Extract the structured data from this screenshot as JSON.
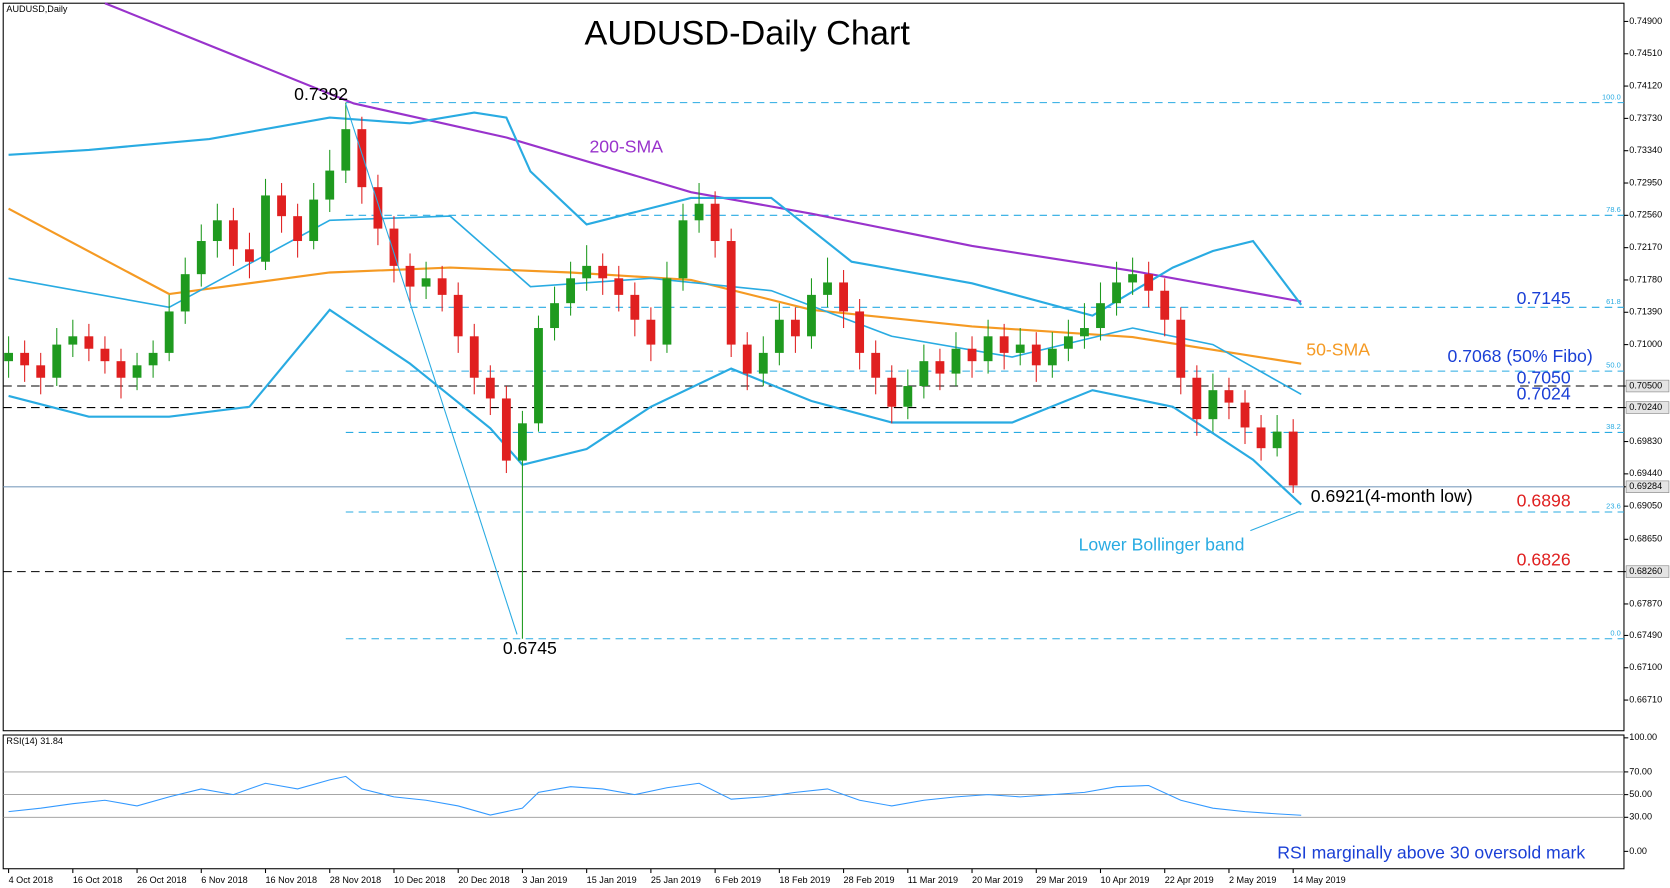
{
  "chart_data": {
    "type": "candlestick",
    "title": "AUDUSD-Daily Chart",
    "symbol_label": "AUDUSD,Daily",
    "up_color": "#1f9a1f",
    "down_color": "#e02020",
    "x": [
      0,
      2,
      4,
      6,
      8,
      10,
      12,
      14,
      16,
      18,
      20,
      22,
      24,
      26,
      28,
      30,
      32,
      34,
      36,
      38,
      40,
      42,
      44,
      46,
      48,
      50,
      52,
      54,
      56,
      58,
      60,
      62,
      64,
      66,
      68,
      70,
      72,
      74,
      76,
      78,
      80,
      82,
      84,
      86,
      88,
      90,
      92,
      94,
      96,
      98,
      100,
      102,
      104,
      106,
      108,
      110,
      112,
      114,
      116,
      118,
      120,
      122,
      124,
      126,
      128,
      130,
      132,
      134,
      136,
      138,
      140,
      142,
      144,
      146,
      148,
      150,
      152,
      154,
      156,
      158,
      160
    ],
    "ohlc": [
      [
        0.708,
        0.711,
        0.706,
        0.709
      ],
      [
        0.709,
        0.7105,
        0.7055,
        0.7075
      ],
      [
        0.7075,
        0.709,
        0.704,
        0.706
      ],
      [
        0.706,
        0.712,
        0.705,
        0.71
      ],
      [
        0.71,
        0.713,
        0.7085,
        0.711
      ],
      [
        0.711,
        0.7125,
        0.708,
        0.7095
      ],
      [
        0.7095,
        0.711,
        0.7065,
        0.708
      ],
      [
        0.708,
        0.7095,
        0.7035,
        0.706
      ],
      [
        0.706,
        0.709,
        0.7045,
        0.7075
      ],
      [
        0.7075,
        0.7105,
        0.706,
        0.709
      ],
      [
        0.709,
        0.716,
        0.708,
        0.714
      ],
      [
        0.714,
        0.7205,
        0.7125,
        0.7185
      ],
      [
        0.7185,
        0.7245,
        0.717,
        0.7225
      ],
      [
        0.7225,
        0.727,
        0.7205,
        0.725
      ],
      [
        0.725,
        0.7265,
        0.7195,
        0.7215
      ],
      [
        0.7215,
        0.7235,
        0.718,
        0.72
      ],
      [
        0.72,
        0.73,
        0.719,
        0.728
      ],
      [
        0.728,
        0.7295,
        0.7235,
        0.7255
      ],
      [
        0.7255,
        0.727,
        0.7205,
        0.7225
      ],
      [
        0.7225,
        0.7295,
        0.7215,
        0.7275
      ],
      [
        0.7275,
        0.7335,
        0.726,
        0.731
      ],
      [
        0.731,
        0.7392,
        0.7295,
        0.736
      ],
      [
        0.736,
        0.7375,
        0.727,
        0.729
      ],
      [
        0.729,
        0.7305,
        0.722,
        0.724
      ],
      [
        0.724,
        0.7255,
        0.7175,
        0.7195
      ],
      [
        0.7195,
        0.721,
        0.715,
        0.717
      ],
      [
        0.717,
        0.72,
        0.7155,
        0.718
      ],
      [
        0.718,
        0.7195,
        0.714,
        0.716
      ],
      [
        0.716,
        0.7175,
        0.709,
        0.711
      ],
      [
        0.711,
        0.7125,
        0.704,
        0.706
      ],
      [
        0.706,
        0.7075,
        0.7015,
        0.7035
      ],
      [
        0.7035,
        0.705,
        0.6945,
        0.696
      ],
      [
        0.696,
        0.702,
        0.6745,
        0.7005
      ],
      [
        0.7005,
        0.7135,
        0.6995,
        0.712
      ],
      [
        0.712,
        0.717,
        0.7105,
        0.715
      ],
      [
        0.715,
        0.72,
        0.7135,
        0.718
      ],
      [
        0.718,
        0.722,
        0.7165,
        0.7195
      ],
      [
        0.7195,
        0.721,
        0.716,
        0.718
      ],
      [
        0.718,
        0.7195,
        0.714,
        0.716
      ],
      [
        0.716,
        0.7175,
        0.711,
        0.713
      ],
      [
        0.713,
        0.7145,
        0.708,
        0.71
      ],
      [
        0.71,
        0.72,
        0.709,
        0.718
      ],
      [
        0.718,
        0.727,
        0.7165,
        0.725
      ],
      [
        0.725,
        0.7295,
        0.7235,
        0.727
      ],
      [
        0.727,
        0.7285,
        0.7205,
        0.7225
      ],
      [
        0.7225,
        0.724,
        0.7085,
        0.71
      ],
      [
        0.71,
        0.7115,
        0.7045,
        0.7065
      ],
      [
        0.7065,
        0.711,
        0.705,
        0.709
      ],
      [
        0.709,
        0.715,
        0.7075,
        0.713
      ],
      [
        0.713,
        0.7145,
        0.709,
        0.711
      ],
      [
        0.711,
        0.718,
        0.7095,
        0.716
      ],
      [
        0.716,
        0.7205,
        0.7145,
        0.7175
      ],
      [
        0.7175,
        0.719,
        0.712,
        0.714
      ],
      [
        0.714,
        0.7155,
        0.707,
        0.709
      ],
      [
        0.709,
        0.7105,
        0.704,
        0.706
      ],
      [
        0.706,
        0.7075,
        0.7005,
        0.7025
      ],
      [
        0.7025,
        0.707,
        0.701,
        0.705
      ],
      [
        0.705,
        0.71,
        0.7035,
        0.708
      ],
      [
        0.708,
        0.7095,
        0.7045,
        0.7065
      ],
      [
        0.7065,
        0.7115,
        0.705,
        0.7095
      ],
      [
        0.7095,
        0.711,
        0.706,
        0.708
      ],
      [
        0.708,
        0.713,
        0.7065,
        0.711
      ],
      [
        0.711,
        0.7125,
        0.707,
        0.709
      ],
      [
        0.709,
        0.712,
        0.7075,
        0.71
      ],
      [
        0.71,
        0.7115,
        0.7055,
        0.7075
      ],
      [
        0.7075,
        0.7115,
        0.706,
        0.7095
      ],
      [
        0.7095,
        0.713,
        0.708,
        0.711
      ],
      [
        0.711,
        0.715,
        0.7095,
        0.712
      ],
      [
        0.712,
        0.7175,
        0.7105,
        0.715
      ],
      [
        0.715,
        0.72,
        0.7135,
        0.7175
      ],
      [
        0.7175,
        0.7205,
        0.716,
        0.7185
      ],
      [
        0.7185,
        0.72,
        0.7145,
        0.7165
      ],
      [
        0.7165,
        0.718,
        0.711,
        0.713
      ],
      [
        0.713,
        0.7145,
        0.704,
        0.706
      ],
      [
        0.706,
        0.7075,
        0.699,
        0.701
      ],
      [
        0.701,
        0.7065,
        0.6995,
        0.7045
      ],
      [
        0.7045,
        0.706,
        0.701,
        0.703
      ],
      [
        0.703,
        0.7045,
        0.698,
        0.7
      ],
      [
        0.7,
        0.7015,
        0.696,
        0.6975
      ],
      [
        0.6975,
        0.7015,
        0.6965,
        0.6995
      ],
      [
        0.6995,
        0.701,
        0.6921,
        0.693
      ]
    ],
    "lines": [
      {
        "name": "200-SMA",
        "color": "#9933cc",
        "width": 2,
        "x": [
          12,
          43,
          62,
          85,
          100,
          120,
          140,
          161
        ],
        "values": [
          0.7512,
          0.7391,
          0.735,
          0.7284,
          0.7258,
          0.7219,
          0.7189,
          0.7152
        ]
      },
      {
        "name": "50-SMA",
        "color": "#f59a23",
        "width": 2,
        "x": [
          0,
          20,
          40,
          55,
          70,
          85,
          100,
          120,
          140,
          161
        ],
        "values": [
          0.7264,
          0.7161,
          0.7187,
          0.7193,
          0.7187,
          0.7178,
          0.7142,
          0.7122,
          0.7109,
          0.7077
        ]
      },
      {
        "color": "#29abe2",
        "width": 2,
        "x": [
          0,
          10,
          25,
          40,
          50,
          58,
          62,
          65,
          72,
          85,
          95,
          105,
          120,
          135,
          145,
          150,
          155,
          161
        ],
        "values": [
          0.7329,
          0.7335,
          0.7348,
          0.7374,
          0.7367,
          0.738,
          0.7374,
          0.7309,
          0.7245,
          0.7277,
          0.7277,
          0.72,
          0.7174,
          0.7135,
          0.7193,
          0.7213,
          0.7225,
          0.7148
        ]
      },
      {
        "color": "#29abe2",
        "width": 2,
        "x": [
          0,
          10,
          20,
          30,
          40,
          50,
          60,
          64,
          72,
          80,
          90,
          100,
          110,
          125,
          135,
          145,
          155,
          161
        ],
        "values": [
          0.7038,
          0.7013,
          0.7013,
          0.7025,
          0.7142,
          0.7077,
          0.6999,
          0.6955,
          0.6974,
          0.7025,
          0.7071,
          0.7032,
          0.7006,
          0.7006,
          0.7045,
          0.7025,
          0.6961,
          0.6907
        ]
      },
      {
        "color": "#29abe2",
        "width": 1.5,
        "x": [
          0,
          20,
          40,
          55,
          65,
          80,
          95,
          110,
          125,
          140,
          150,
          161
        ],
        "values": [
          0.718,
          0.7145,
          0.725,
          0.7255,
          0.717,
          0.718,
          0.7165,
          0.711,
          0.7085,
          0.712,
          0.71,
          0.704
        ]
      }
    ],
    "levels": [
      {
        "value": 0.705,
        "color": "#000000",
        "dash": true
      },
      {
        "value": 0.7024,
        "color": "#000000",
        "dash": true
      },
      {
        "value": 0.6826,
        "color": "#000000",
        "dash": true
      },
      {
        "value": 0.69284,
        "color": "#7f9fbf",
        "dash": false
      }
    ],
    "fibo": {
      "color": "#29abe2",
      "start_x": 42,
      "levels": [
        {
          "label": "100.0",
          "value": 0.7392
        },
        {
          "label": "78.6",
          "value": 0.7256
        },
        {
          "label": "61.8",
          "value": 0.7145
        },
        {
          "label": "50.0",
          "value": 0.7068
        },
        {
          "label": "38.2",
          "value": 0.6994
        },
        {
          "label": "23.6",
          "value": 0.6898
        },
        {
          "label": "0.0",
          "value": 0.6745
        }
      ]
    },
    "xlim": [
      -0.67,
      201.2
    ],
    "xticks": [
      {
        "value": 0,
        "label": "4 Oct 2018"
      },
      {
        "value": 8,
        "label": "16 Oct 2018"
      },
      {
        "value": 16,
        "label": "26 Oct 2018"
      },
      {
        "value": 24,
        "label": "6 Nov 2018"
      },
      {
        "value": 32,
        "label": "16 Nov 2018"
      },
      {
        "value": 40,
        "label": "28 Nov 2018"
      },
      {
        "value": 48,
        "label": "10 Dec 2018"
      },
      {
        "value": 56,
        "label": "20 Dec 2018"
      },
      {
        "value": 64,
        "label": "3 Jan 2019"
      },
      {
        "value": 72,
        "label": "15 Jan 2019"
      },
      {
        "value": 80,
        "label": "25 Jan 2019"
      },
      {
        "value": 88,
        "label": "6 Feb 2019"
      },
      {
        "value": 96,
        "label": "18 Feb 2019"
      },
      {
        "value": 104,
        "label": "28 Feb 2019"
      },
      {
        "value": 112,
        "label": "11 Mar 2019"
      },
      {
        "value": 120,
        "label": "20 Mar 2019"
      },
      {
        "value": 128,
        "label": "29 Mar 2019"
      },
      {
        "value": 136,
        "label": "10 Apr 2019"
      },
      {
        "value": 144,
        "label": "22 Apr 2019"
      },
      {
        "value": 152,
        "label": "2 May 2019"
      },
      {
        "value": 160,
        "label": "14 May 2019"
      }
    ],
    "ylim": [
      0.6634,
      0.7512
    ],
    "yticks": [
      {
        "value": 0.749,
        "label": "0.74900"
      },
      {
        "value": 0.7451,
        "label": "0.74510"
      },
      {
        "value": 0.7412,
        "label": "0.74120"
      },
      {
        "value": 0.7373,
        "label": "0.73730"
      },
      {
        "value": 0.7334,
        "label": "0.73340"
      },
      {
        "value": 0.7295,
        "label": "0.72950"
      },
      {
        "value": 0.7256,
        "label": "0.72560"
      },
      {
        "value": 0.7217,
        "label": "0.72170"
      },
      {
        "value": 0.7178,
        "label": "0.71780"
      },
      {
        "value": 0.7139,
        "label": "0.71390"
      },
      {
        "value": 0.71,
        "label": "0.71000"
      },
      {
        "value": 0.705,
        "label": "0.70500",
        "highlight": true
      },
      {
        "value": 0.7024,
        "label": "0.70240",
        "highlight": true
      },
      {
        "value": 0.6983,
        "label": "0.69830"
      },
      {
        "value": 0.6944,
        "label": "0.69440"
      },
      {
        "value": 0.69284,
        "label": "0.69284",
        "highlight": true
      },
      {
        "value": 0.6905,
        "label": "0.69050"
      },
      {
        "value": 0.6865,
        "label": "0.68650"
      },
      {
        "value": 0.6826,
        "label": "0.68260",
        "highlight": true
      },
      {
        "value": 0.6787,
        "label": "0.67870"
      },
      {
        "value": 0.6749,
        "label": "0.67490"
      },
      {
        "value": 0.671,
        "label": "0.67100"
      },
      {
        "value": 0.6671,
        "label": "0.66710"
      }
    ],
    "annotations": {
      "high": "0.7392",
      "low": "0.6745",
      "sma200": "200-SMA",
      "level_7145": "0.7145",
      "sma50": "50-SMA",
      "fibo50": "0.7068 (50% Fibo)",
      "level_7050": "0.7050",
      "level_7024": "0.7024",
      "low4m": "0.6921(4-month low)",
      "level_6898": "0.6898",
      "bollinger": "Lower Bollinger band",
      "level_6826": "0.6826"
    },
    "rsi": {
      "title": "RSI(14) 31.84",
      "note": "RSI marginally above 30 oversold mark",
      "color": "#3399ff",
      "x": [
        0,
        4,
        8,
        12,
        16,
        20,
        24,
        28,
        32,
        36,
        40,
        42,
        44,
        48,
        52,
        56,
        60,
        64,
        66,
        70,
        74,
        78,
        82,
        86,
        90,
        94,
        98,
        102,
        106,
        110,
        114,
        118,
        122,
        126,
        130,
        134,
        138,
        142,
        146,
        150,
        154,
        158,
        161
      ],
      "values": [
        35,
        38,
        42,
        45,
        40,
        48,
        55,
        50,
        60,
        55,
        63,
        66,
        55,
        48,
        45,
        40,
        32,
        38,
        52,
        57,
        55,
        50,
        56,
        60,
        46,
        48,
        52,
        55,
        45,
        40,
        45,
        48,
        50,
        48,
        50,
        52,
        57,
        58,
        45,
        38,
        35,
        33,
        31.84
      ],
      "ylim": [
        -15.3,
        102.5
      ],
      "yticks": [
        {
          "value": 100,
          "label": "100.00"
        },
        {
          "value": 70,
          "label": "70.00"
        },
        {
          "value": 50,
          "label": "50.00"
        },
        {
          "value": 30,
          "label": "30.00"
        },
        {
          "value": 0,
          "label": "0.00"
        }
      ],
      "grid": [
        70,
        50,
        30
      ]
    }
  }
}
